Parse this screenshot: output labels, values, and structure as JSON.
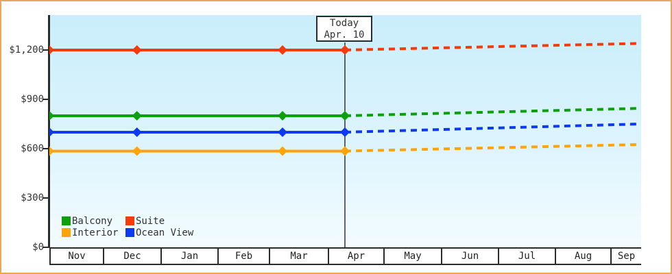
{
  "frame": {
    "border_color": "#e9a75a",
    "axis_color": "#2b2b2b"
  },
  "annotation": {
    "line1": "Today",
    "line2": "Apr. 10"
  },
  "chart_data": {
    "type": "line",
    "title": "",
    "x_categories": [
      "Nov",
      "Dec",
      "Jan",
      "Feb",
      "Mar",
      "Apr",
      "May",
      "Jun",
      "Jul",
      "Aug",
      "Sep"
    ],
    "y_tick_labels": [
      "$0",
      "$300",
      "$600",
      "$900",
      "$1,200"
    ],
    "y_tick_values": [
      0,
      300,
      600,
      900,
      1200
    ],
    "ylim": [
      0,
      1410
    ],
    "grid": false,
    "legend_position": "bottom-left",
    "today_annotation": {
      "line1": "Today",
      "line2": "Apr. 10",
      "x_category": "Apr"
    },
    "series": [
      {
        "name": "Suite",
        "color": "#f43b09",
        "history_value": 1200,
        "forecast_end_value": 1240
      },
      {
        "name": "Balcony",
        "color": "#0ca10c",
        "history_value": 800,
        "forecast_end_value": 845
      },
      {
        "name": "Ocean View",
        "color": "#0d3af0",
        "history_value": 700,
        "forecast_end_value": 750
      },
      {
        "name": "Interior",
        "color": "#ffa408",
        "history_value": 585,
        "forecast_end_value": 625
      }
    ],
    "legend_rows": [
      [
        "Balcony",
        "Suite"
      ],
      [
        "Interior",
        "Ocean View"
      ]
    ]
  }
}
